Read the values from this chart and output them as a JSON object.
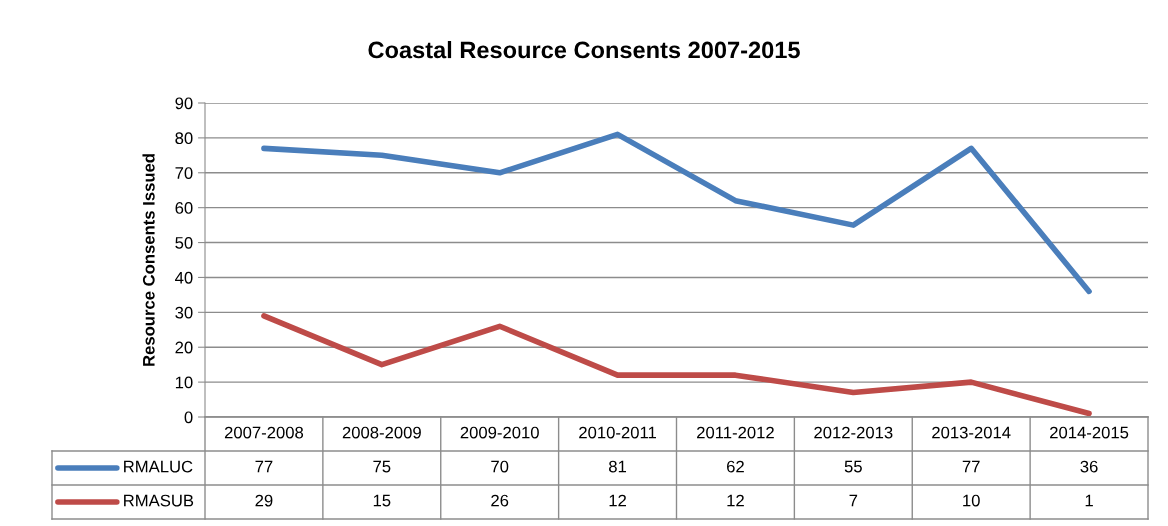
{
  "chart_data": {
    "type": "line",
    "title": "Coastal Resource Consents 2007-2015",
    "ylabel": "Resource Consents Issued",
    "categories": [
      "2007-2008",
      "2008-2009",
      "2009-2010",
      "2010-2011",
      "2011-2012",
      "2012-2013",
      "2013-2014",
      "2014-2015"
    ],
    "series": [
      {
        "name": "RMALUC",
        "color": "#4a7ebb",
        "values": [
          77,
          75,
          70,
          81,
          62,
          55,
          77,
          36
        ]
      },
      {
        "name": "RMASUB",
        "color": "#be4b48",
        "values": [
          29,
          15,
          26,
          12,
          12,
          7,
          10,
          1
        ]
      }
    ],
    "ylim": [
      0,
      90
    ],
    "yticks": [
      0,
      10,
      20,
      30,
      40,
      50,
      60,
      70,
      80,
      90
    ],
    "grid": "y",
    "legend": "bottom",
    "data_labels": true,
    "marker": "none"
  }
}
